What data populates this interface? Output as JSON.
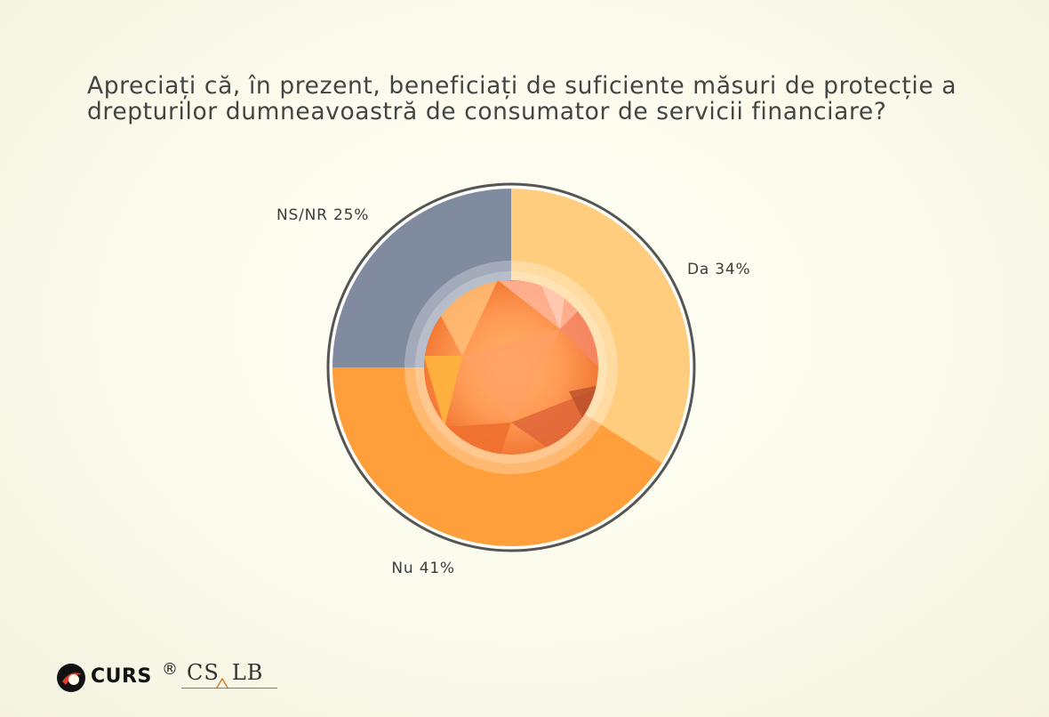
{
  "chart_data": {
    "type": "pie",
    "title_lines": [
      "Apreciați că, în prezent, beneficiați de suficiente măsuri de protecție a",
      "drepturilor dumneavoastră de consumator de servicii financiare?"
    ],
    "slices": [
      {
        "label": "Da",
        "value": 34,
        "display": "Da 34%",
        "color": "#ffcd7d"
      },
      {
        "label": "Nu",
        "value": 41,
        "display": "Nu 41%",
        "color": "#ff9f3b"
      },
      {
        "label": "NS/NR",
        "value": 25,
        "display": "NS/NR 25%",
        "color": "#808ba0"
      }
    ]
  },
  "logos": {
    "curs": "CURS",
    "registered": "®",
    "cs": "CS",
    "lb": "LB"
  }
}
